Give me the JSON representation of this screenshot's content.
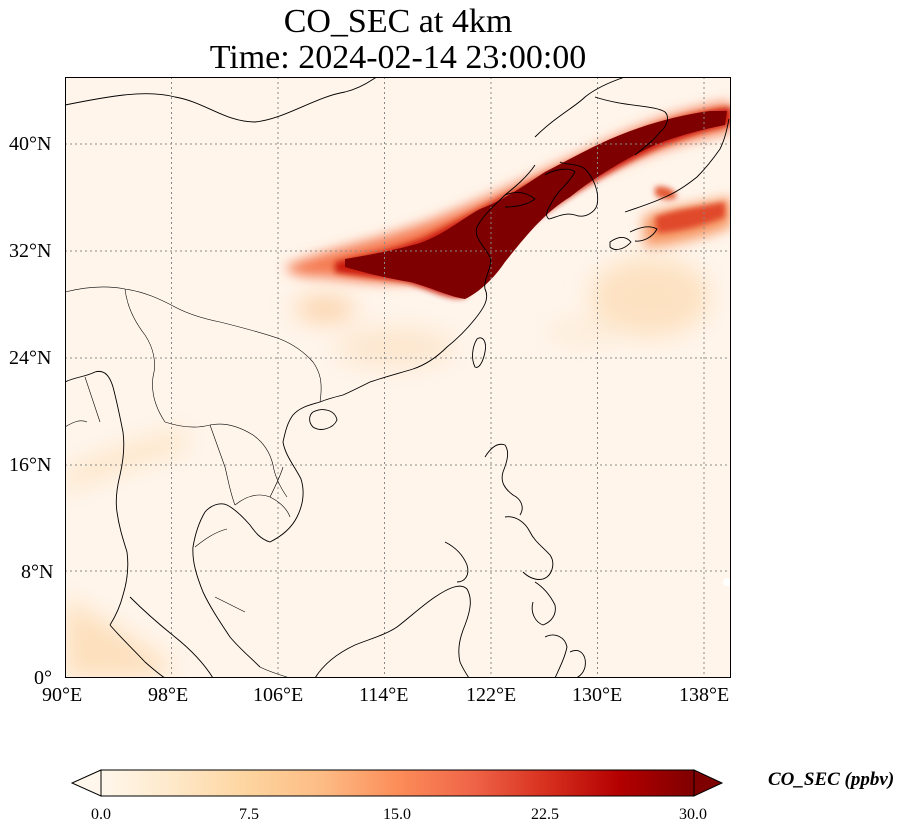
{
  "title": {
    "line1": "CO_SEC at 4km",
    "line2": "Time: 2024-02-14 23:00:00"
  },
  "map": {
    "region": "East Asia",
    "projection": "PlateCarree",
    "lon_range": [
      90,
      140
    ],
    "lat_range": [
      0,
      45
    ],
    "gridlines": "dotted",
    "lat_ticks": [
      "40°N",
      "32°N",
      "24°N",
      "16°N",
      "8°N",
      "0°"
    ],
    "lon_ticks": [
      "90°E",
      "98°E",
      "106°E",
      "114°E",
      "122°E",
      "130°E",
      "138°E"
    ],
    "plume_color": "#7f0000",
    "background_color": "#fff5eb"
  },
  "colorbar": {
    "label": "CO_SEC (ppbv)",
    "ticks": [
      "0.0",
      "7.5",
      "15.0",
      "22.5",
      "30.0"
    ],
    "min": 0,
    "max": 30,
    "extend": "both",
    "colormap": "OrRd",
    "colors": [
      "#fff7ec",
      "#fee8c8",
      "#fdd49e",
      "#fdbb84",
      "#fc8d59",
      "#ef6548",
      "#d7301f",
      "#b30000",
      "#7f0000"
    ]
  }
}
